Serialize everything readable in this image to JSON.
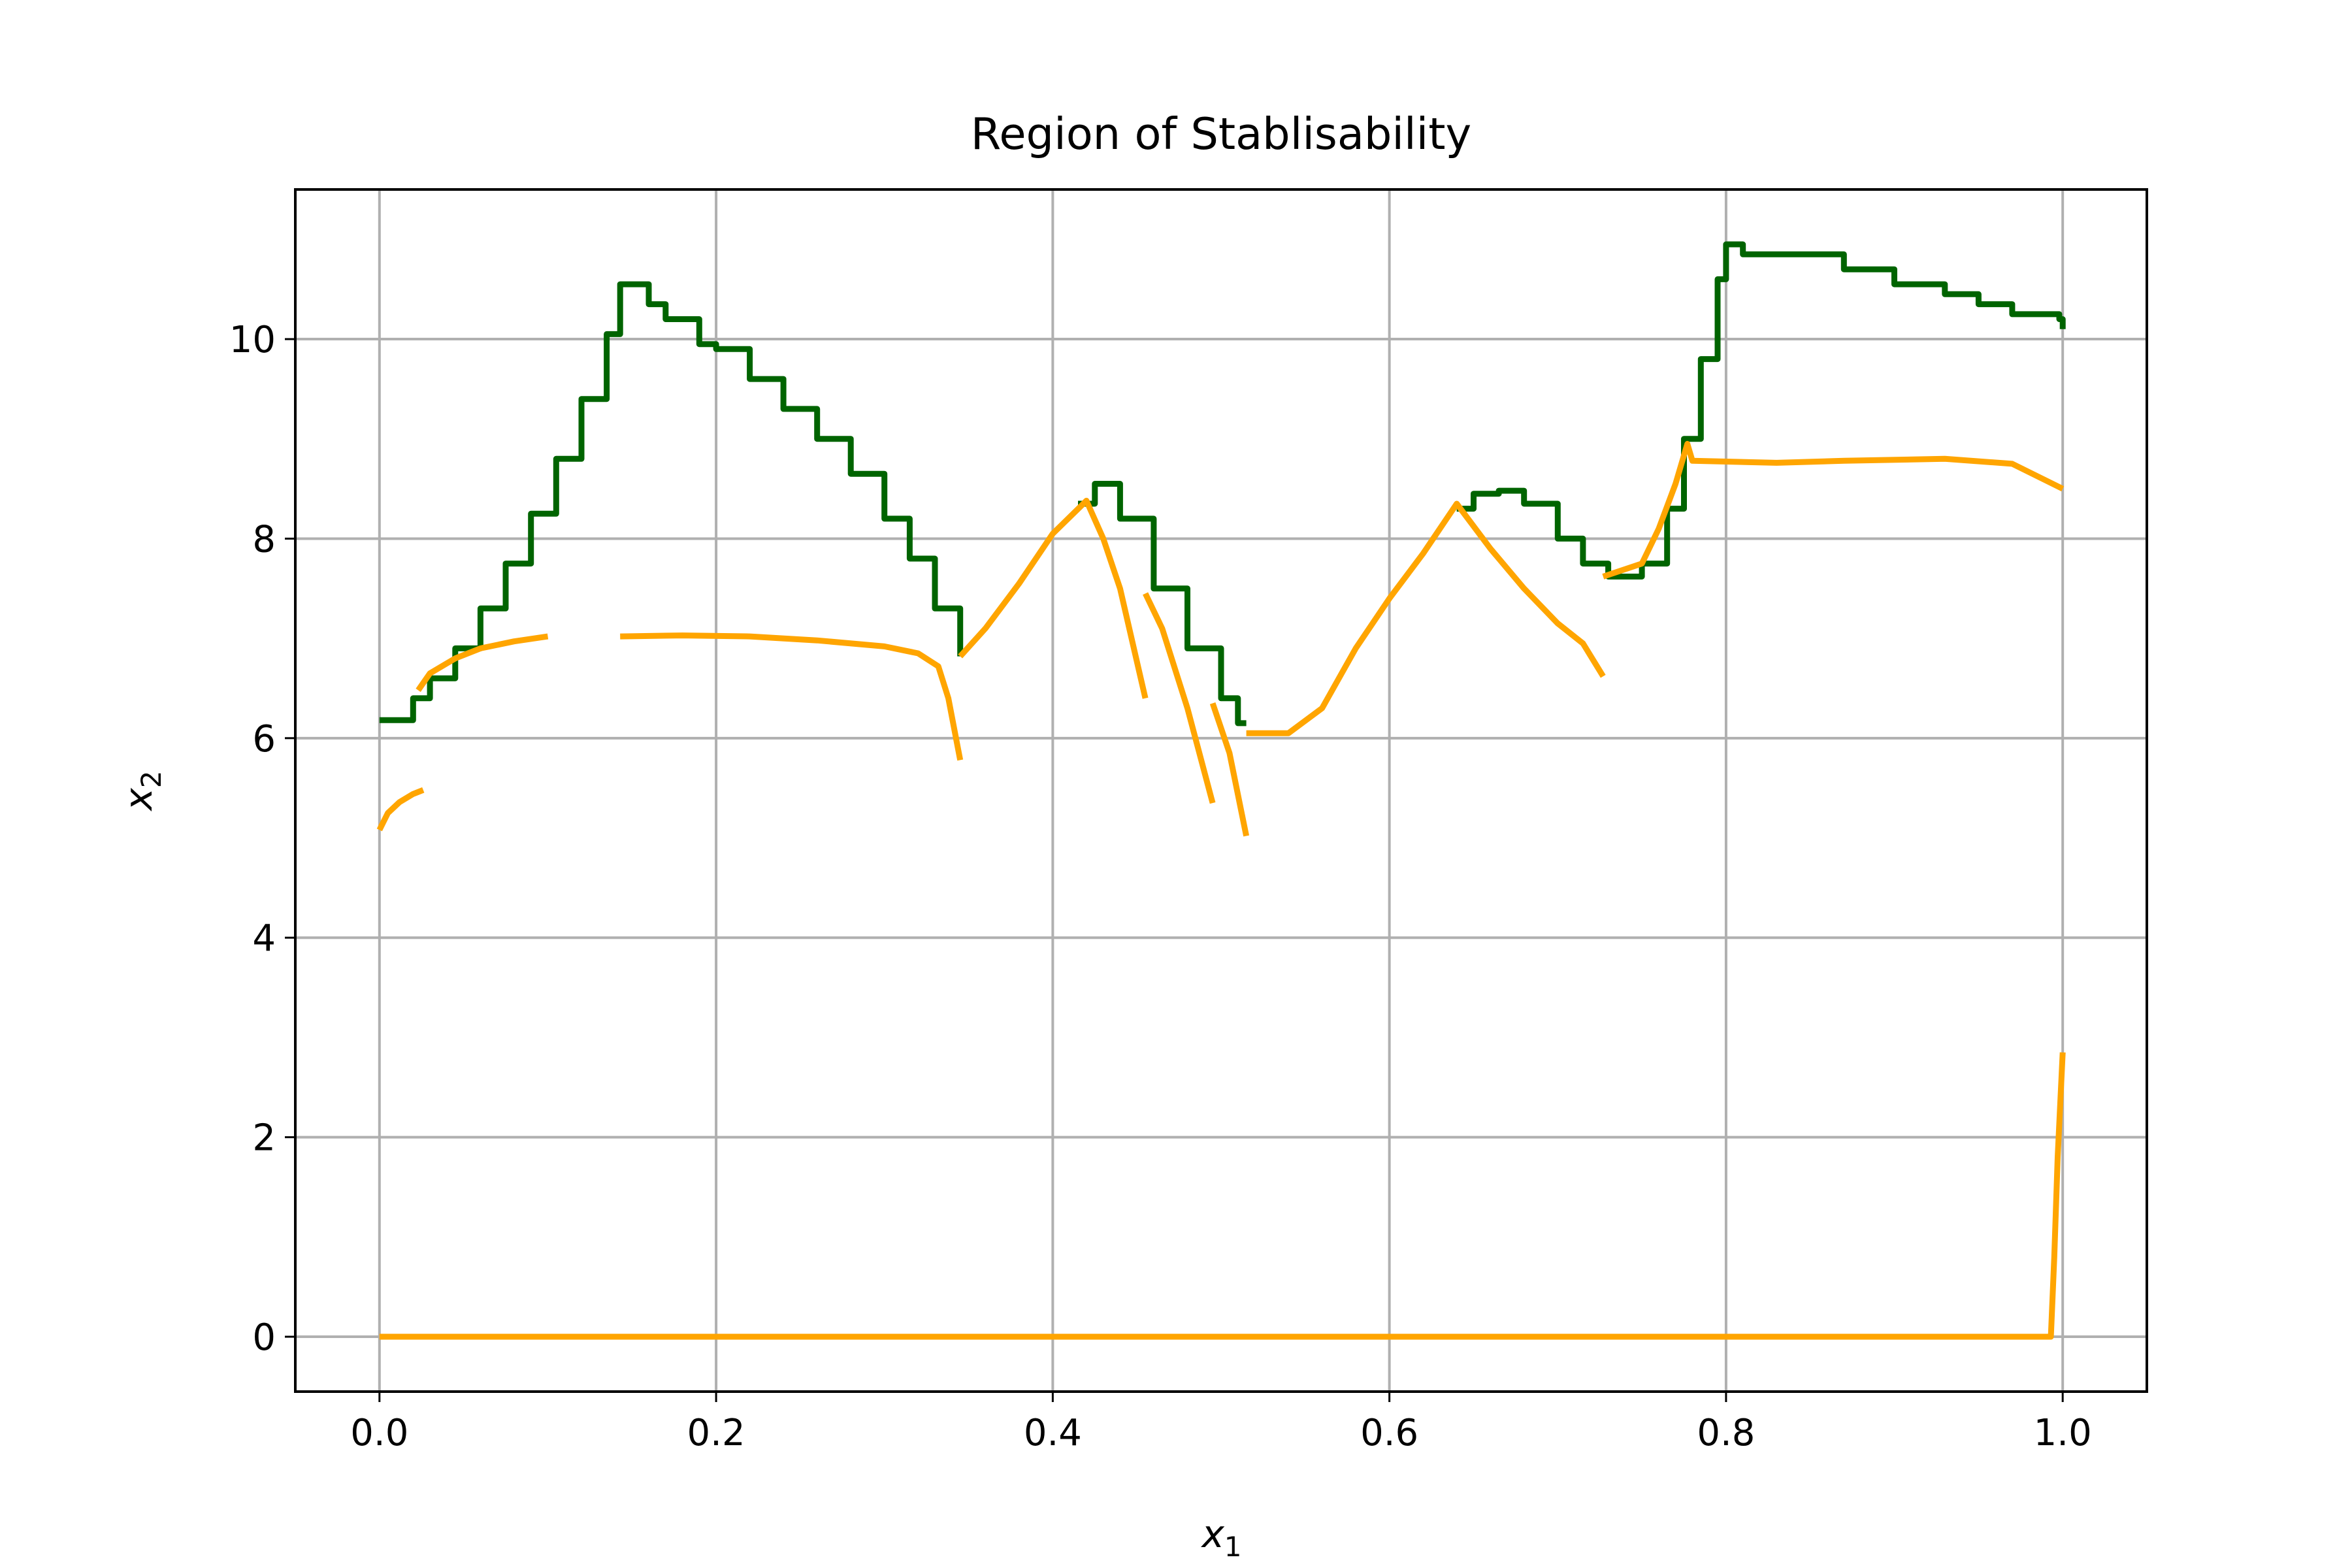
{
  "chart_data": {
    "type": "line",
    "title": "Region of Stablisability",
    "xlabel": "x",
    "xlabel_subscript": "1",
    "ylabel": "x",
    "ylabel_subscript": "2",
    "xlim": [
      -0.05,
      1.05
    ],
    "ylim": [
      -0.55,
      11.5
    ],
    "xticks": [
      0.0,
      0.2,
      0.4,
      0.6,
      0.8,
      1.0
    ],
    "xtick_labels": [
      "0.0",
      "0.2",
      "0.4",
      "0.6",
      "0.8",
      "1.0"
    ],
    "yticks": [
      0,
      2,
      4,
      6,
      8,
      10
    ],
    "ytick_labels": [
      "0",
      "2",
      "4",
      "6",
      "8",
      "10"
    ],
    "grid": true,
    "colors": {
      "green": "#006400",
      "orange": "#ffa500"
    },
    "series": [
      {
        "color": "#006400",
        "step": true,
        "segments": [
          [
            [
              0.0,
              6.18
            ],
            [
              0.01,
              6.18
            ],
            [
              0.02,
              6.4
            ],
            [
              0.03,
              6.6
            ],
            [
              0.045,
              6.9
            ],
            [
              0.06,
              7.3
            ],
            [
              0.075,
              7.75
            ],
            [
              0.09,
              8.25
            ],
            [
              0.105,
              8.8
            ],
            [
              0.12,
              9.4
            ],
            [
              0.135,
              10.05
            ],
            [
              0.143,
              10.55
            ],
            [
              0.152,
              10.55
            ],
            [
              0.16,
              10.35
            ],
            [
              0.17,
              10.2
            ],
            [
              0.19,
              9.95
            ],
            [
              0.2,
              9.9
            ],
            [
              0.22,
              9.6
            ],
            [
              0.24,
              9.3
            ],
            [
              0.26,
              9.0
            ],
            [
              0.28,
              8.65
            ],
            [
              0.3,
              8.2
            ],
            [
              0.315,
              7.8
            ],
            [
              0.33,
              7.3
            ],
            [
              0.345,
              6.82
            ]
          ],
          [
            [
              0.415,
              8.35
            ],
            [
              0.425,
              8.55
            ],
            [
              0.432,
              8.55
            ],
            [
              0.44,
              8.2
            ],
            [
              0.46,
              7.5
            ],
            [
              0.48,
              6.9
            ],
            [
              0.5,
              6.4
            ],
            [
              0.51,
              6.15
            ],
            [
              0.515,
              6.15
            ]
          ],
          [
            [
              0.64,
              8.3
            ],
            [
              0.65,
              8.45
            ],
            [
              0.665,
              8.48
            ],
            [
              0.68,
              8.35
            ],
            [
              0.7,
              8.0
            ],
            [
              0.715,
              7.75
            ],
            [
              0.73,
              7.62
            ],
            [
              0.75,
              7.75
            ],
            [
              0.765,
              8.3
            ],
            [
              0.775,
              9.0
            ],
            [
              0.785,
              9.8
            ],
            [
              0.795,
              10.6
            ],
            [
              0.8,
              10.95
            ],
            [
              0.81,
              10.85
            ],
            [
              0.85,
              10.85
            ],
            [
              0.87,
              10.7
            ],
            [
              0.9,
              10.55
            ],
            [
              0.93,
              10.45
            ],
            [
              0.95,
              10.35
            ],
            [
              0.97,
              10.25
            ],
            [
              0.998,
              10.2
            ],
            [
              1.0,
              10.1
            ]
          ]
        ]
      },
      {
        "color": "#ffa500",
        "step": false,
        "segments": [
          [
            [
              0.0,
              5.08
            ],
            [
              0.005,
              5.25
            ],
            [
              0.012,
              5.36
            ],
            [
              0.02,
              5.44
            ],
            [
              0.026,
              5.48
            ]
          ],
          [
            [
              0.023,
              6.48
            ],
            [
              0.03,
              6.65
            ],
            [
              0.045,
              6.8
            ],
            [
              0.06,
              6.9
            ],
            [
              0.08,
              6.97
            ],
            [
              0.1,
              7.02
            ]
          ],
          [
            [
              0.143,
              7.02
            ],
            [
              0.18,
              7.03
            ],
            [
              0.22,
              7.02
            ],
            [
              0.26,
              6.98
            ],
            [
              0.3,
              6.92
            ],
            [
              0.32,
              6.85
            ],
            [
              0.332,
              6.72
            ],
            [
              0.338,
              6.4
            ],
            [
              0.345,
              5.78
            ]
          ],
          [
            [
              0.345,
              6.82
            ],
            [
              0.36,
              7.1
            ],
            [
              0.38,
              7.55
            ],
            [
              0.4,
              8.05
            ],
            [
              0.42,
              8.38
            ],
            [
              0.43,
              8.0
            ],
            [
              0.44,
              7.5
            ],
            [
              0.455,
              6.4
            ]
          ],
          [
            [
              0.455,
              7.45
            ],
            [
              0.465,
              7.1
            ],
            [
              0.48,
              6.3
            ],
            [
              0.495,
              5.35
            ]
          ],
          [
            [
              0.495,
              6.35
            ],
            [
              0.505,
              5.85
            ],
            [
              0.515,
              5.02
            ]
          ],
          [
            [
              0.515,
              6.05
            ],
            [
              0.54,
              6.05
            ],
            [
              0.56,
              6.3
            ],
            [
              0.58,
              6.9
            ],
            [
              0.6,
              7.4
            ],
            [
              0.62,
              7.85
            ],
            [
              0.64,
              8.35
            ],
            [
              0.66,
              7.9
            ],
            [
              0.68,
              7.5
            ],
            [
              0.7,
              7.15
            ],
            [
              0.715,
              6.95
            ],
            [
              0.727,
              6.62
            ]
          ],
          [
            [
              0.727,
              7.62
            ],
            [
              0.75,
              7.75
            ],
            [
              0.76,
              8.1
            ],
            [
              0.77,
              8.55
            ],
            [
              0.777,
              8.95
            ],
            [
              0.78,
              8.78
            ],
            [
              0.83,
              8.76
            ],
            [
              0.87,
              8.78
            ],
            [
              0.93,
              8.8
            ],
            [
              0.97,
              8.75
            ],
            [
              1.0,
              8.5
            ]
          ],
          [
            [
              0.0,
              0.0
            ],
            [
              0.993,
              0.0
            ],
            [
              0.995,
              0.8
            ],
            [
              0.997,
              1.8
            ],
            [
              1.0,
              2.85
            ]
          ]
        ]
      }
    ]
  }
}
